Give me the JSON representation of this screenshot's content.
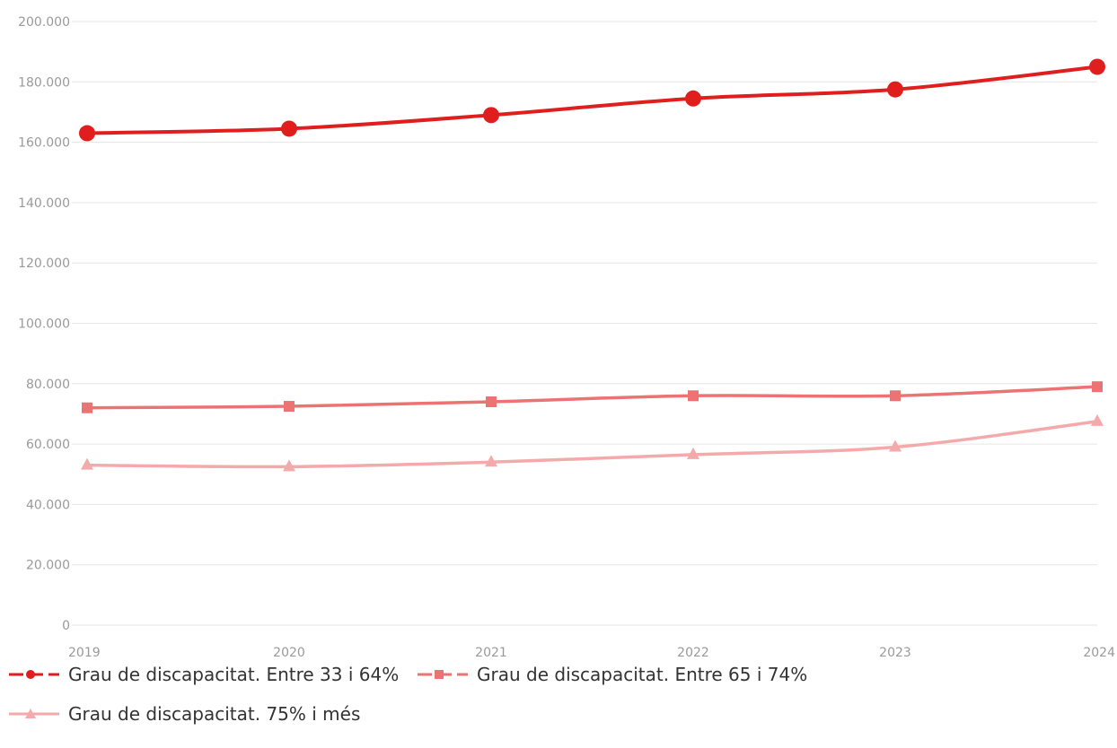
{
  "chart_data": {
    "type": "line",
    "x": [
      "2019",
      "2020",
      "2021",
      "2022",
      "2023",
      "2024"
    ],
    "ylim": [
      0,
      200000
    ],
    "yticks": [
      0,
      20000,
      40000,
      60000,
      80000,
      100000,
      120000,
      140000,
      160000,
      180000,
      200000
    ],
    "ytick_labels": [
      "0",
      "20.000",
      "40.000",
      "60.000",
      "80.000",
      "100.000",
      "120.000",
      "140.000",
      "160.000",
      "180.000",
      "200.000"
    ],
    "grid": true,
    "legend_position": "bottom",
    "series": [
      {
        "name": "Grau de discapacitat. Entre 33 i 64%",
        "values": [
          163000,
          164500,
          169000,
          174500,
          177500,
          185000
        ],
        "color": "#e01e1e",
        "marker": "circle"
      },
      {
        "name": "Grau de discapacitat. Entre 65 i 74%",
        "values": [
          72000,
          72500,
          74000,
          76000,
          76000,
          79000
        ],
        "color": "#ec7373",
        "marker": "square"
      },
      {
        "name": "Grau de discapacitat. 75% i més",
        "values": [
          53000,
          52500,
          54000,
          56500,
          59000,
          67500
        ],
        "color": "#f4aaaa",
        "marker": "triangle"
      }
    ]
  }
}
